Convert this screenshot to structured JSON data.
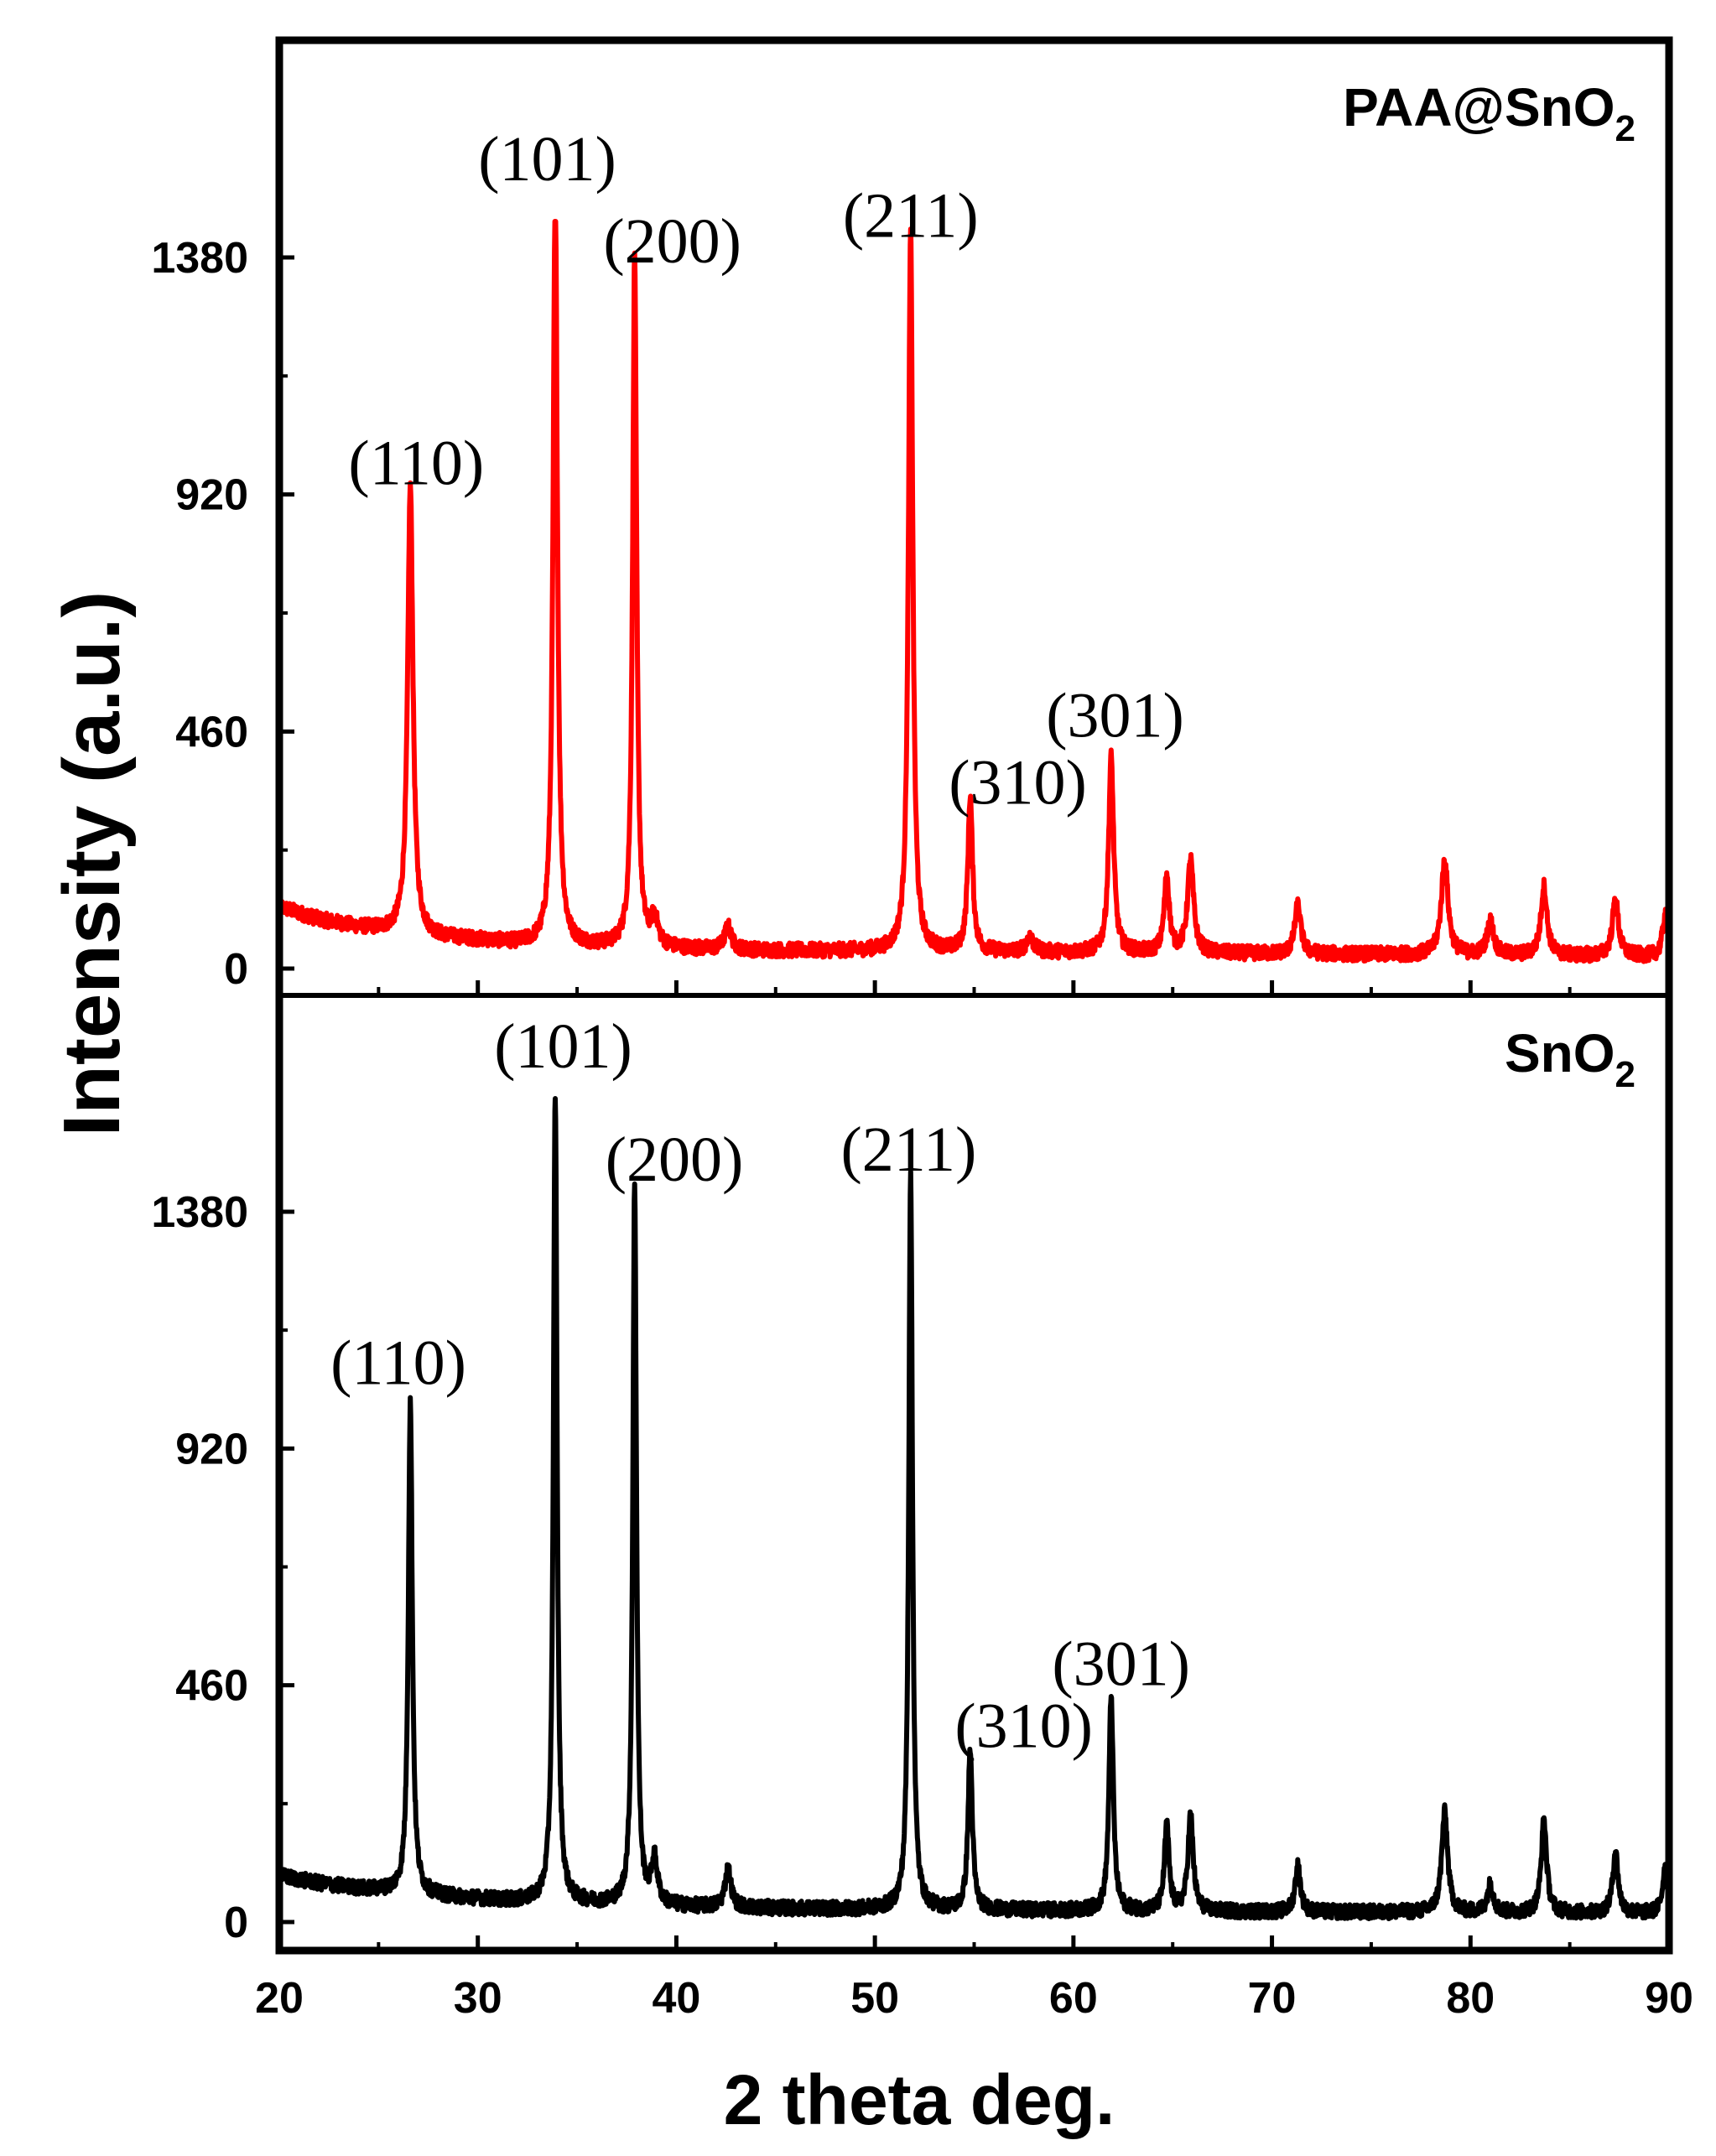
{
  "chart_data": {
    "type": "line",
    "xlabel": "2 theta deg.",
    "ylabel": "Intensity (a.u.)",
    "xlim": [
      20,
      90
    ],
    "xticks": [
      20,
      30,
      40,
      50,
      60,
      70,
      80,
      90
    ],
    "ylim": [
      -40,
      1380
    ],
    "yticks": [
      0,
      460,
      920,
      1380
    ],
    "grid": false,
    "panels": [
      {
        "name_prefix": "PAA@SnO",
        "name_sub": "2",
        "color": "#ff0000",
        "ymax": 1450,
        "baseline": [
          [
            20,
            120
          ],
          [
            22,
            95
          ],
          [
            24,
            80
          ],
          [
            26,
            70
          ],
          [
            28,
            60
          ],
          [
            30,
            55
          ],
          [
            32,
            48
          ],
          [
            34,
            45
          ],
          [
            36,
            42
          ],
          [
            38,
            40
          ],
          [
            40,
            38
          ],
          [
            44,
            35
          ],
          [
            48,
            34
          ],
          [
            52,
            33
          ],
          [
            56,
            32
          ],
          [
            60,
            31
          ],
          [
            64,
            30
          ],
          [
            68,
            29
          ],
          [
            72,
            28
          ],
          [
            76,
            27
          ],
          [
            80,
            26
          ],
          [
            84,
            25
          ],
          [
            88,
            24
          ],
          [
            90,
            24
          ]
        ],
        "peaks": [
          {
            "x": 26.6,
            "y": 870,
            "w": 0.16
          },
          {
            "x": 33.9,
            "y": 1465,
            "w": 0.13
          },
          {
            "x": 37.9,
            "y": 1340,
            "w": 0.12
          },
          {
            "x": 38.9,
            "y": 55,
            "w": 0.2
          },
          {
            "x": 42.6,
            "y": 45,
            "w": 0.2
          },
          {
            "x": 51.8,
            "y": 1395,
            "w": 0.13
          },
          {
            "x": 54.8,
            "y": 300,
            "w": 0.14
          },
          {
            "x": 57.8,
            "y": 30,
            "w": 0.2
          },
          {
            "x": 61.9,
            "y": 380,
            "w": 0.15
          },
          {
            "x": 64.7,
            "y": 150,
            "w": 0.15
          },
          {
            "x": 65.9,
            "y": 180,
            "w": 0.18
          },
          {
            "x": 71.3,
            "y": 95,
            "w": 0.18
          },
          {
            "x": 78.7,
            "y": 185,
            "w": 0.2
          },
          {
            "x": 81.0,
            "y": 65,
            "w": 0.2
          },
          {
            "x": 83.7,
            "y": 135,
            "w": 0.18
          },
          {
            "x": 87.3,
            "y": 110,
            "w": 0.18
          },
          {
            "x": 89.8,
            "y": 80,
            "w": 0.15
          }
        ],
        "labels": [
          {
            "text": "(110)",
            "x": 26.9,
            "y": 940
          },
          {
            "text": "(101)",
            "x": 33.5,
            "y": 1530
          },
          {
            "text": "(200)",
            "x": 39.8,
            "y": 1370
          },
          {
            "text": "(211)",
            "x": 51.8,
            "y": 1420
          },
          {
            "text": "(310)",
            "x": 57.2,
            "y": 320
          },
          {
            "text": "(301)",
            "x": 62.1,
            "y": 450
          }
        ]
      },
      {
        "name_prefix": "SnO",
        "name_sub": "2",
        "color": "#000000",
        "ymax": 1600,
        "baseline": [
          [
            20,
            90
          ],
          [
            22,
            75
          ],
          [
            24,
            65
          ],
          [
            26,
            58
          ],
          [
            28,
            50
          ],
          [
            30,
            45
          ],
          [
            32,
            40
          ],
          [
            34,
            38
          ],
          [
            36,
            35
          ],
          [
            40,
            30
          ],
          [
            44,
            27
          ],
          [
            48,
            25
          ],
          [
            52,
            24
          ],
          [
            56,
            23
          ],
          [
            60,
            22
          ],
          [
            64,
            21
          ],
          [
            68,
            20
          ],
          [
            72,
            19
          ],
          [
            76,
            19
          ],
          [
            80,
            18
          ],
          [
            84,
            18
          ],
          [
            88,
            17
          ],
          [
            90,
            17
          ]
        ],
        "peaks": [
          {
            "x": 26.6,
            "y": 955,
            "w": 0.12
          },
          {
            "x": 33.9,
            "y": 1580,
            "w": 0.11
          },
          {
            "x": 37.9,
            "y": 1400,
            "w": 0.11
          },
          {
            "x": 38.9,
            "y": 85,
            "w": 0.18
          },
          {
            "x": 42.6,
            "y": 75,
            "w": 0.18
          },
          {
            "x": 51.8,
            "y": 1440,
            "w": 0.11
          },
          {
            "x": 54.8,
            "y": 310,
            "w": 0.13
          },
          {
            "x": 61.9,
            "y": 420,
            "w": 0.13
          },
          {
            "x": 64.7,
            "y": 165,
            "w": 0.14
          },
          {
            "x": 65.9,
            "y": 185,
            "w": 0.16
          },
          {
            "x": 71.3,
            "y": 90,
            "w": 0.16
          },
          {
            "x": 78.7,
            "y": 195,
            "w": 0.18
          },
          {
            "x": 81.0,
            "y": 55,
            "w": 0.18
          },
          {
            "x": 83.7,
            "y": 180,
            "w": 0.16
          },
          {
            "x": 87.3,
            "y": 120,
            "w": 0.16
          },
          {
            "x": 89.8,
            "y": 90,
            "w": 0.15
          }
        ],
        "labels": [
          {
            "text": "(110)",
            "x": 26.0,
            "y": 1045
          },
          {
            "text": "(101)",
            "x": 34.3,
            "y": 1660
          },
          {
            "text": "(200)",
            "x": 39.9,
            "y": 1440
          },
          {
            "text": "(211)",
            "x": 51.7,
            "y": 1460
          },
          {
            "text": "(310)",
            "x": 57.5,
            "y": 340
          },
          {
            "text": "(301)",
            "x": 62.4,
            "y": 460
          }
        ]
      }
    ]
  }
}
